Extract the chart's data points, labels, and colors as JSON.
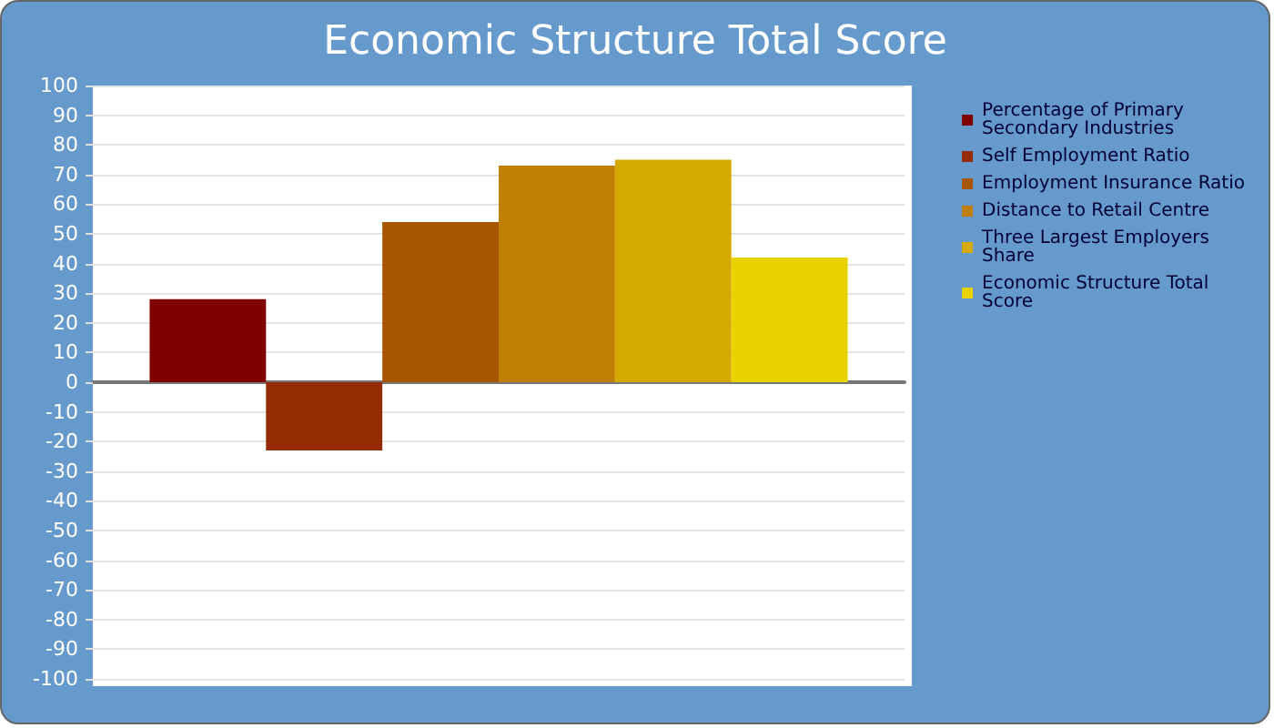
{
  "chart_data": {
    "type": "bar",
    "title": "Economic Structure Total Score",
    "categories": [
      null
    ],
    "series": [
      {
        "name": "Percentage of Primary Secondary Industries",
        "color": "#800000",
        "values": [
          28
        ]
      },
      {
        "name": "Self Employment Ratio",
        "color": "#952b00",
        "values": [
          -23
        ]
      },
      {
        "name": "Employment Insurance Ratio",
        "color": "#a85500",
        "values": [
          54
        ]
      },
      {
        "name": "Distance to Retail Centre",
        "color": "#c07f00",
        "values": [
          73
        ]
      },
      {
        "name": "Three Largest Employers Share",
        "color": "#d4a900",
        "values": [
          75
        ]
      },
      {
        "name": "Economic Structure Total Score",
        "color": "#e8d200",
        "values": [
          42
        ]
      }
    ],
    "ylim": [
      -100,
      100
    ],
    "yticks": [
      -100,
      -90,
      -80,
      -70,
      -60,
      -50,
      -40,
      -30,
      -20,
      -10,
      0,
      10,
      20,
      30,
      40,
      50,
      60,
      70,
      80,
      90,
      100
    ],
    "grid": "y",
    "legend": "right"
  }
}
